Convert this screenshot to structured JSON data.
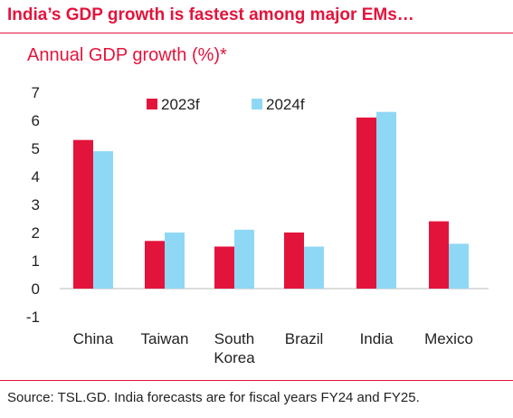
{
  "header": {
    "title": "India’s GDP growth is fastest among major EMs…",
    "subtitle": "Annual GDP growth (%)*"
  },
  "footer": {
    "source": "Source: TSL.GD. India forecasts are for fiscal years FY24 and FY25."
  },
  "colors": {
    "accent": "#e3143c",
    "series_2023f": "#e3143c",
    "series_2024f": "#8fd8f5"
  },
  "chart_data": {
    "type": "bar",
    "title": "Annual GDP growth (%)*",
    "categories": [
      [
        "China"
      ],
      [
        "Taiwan"
      ],
      [
        "South",
        "Korea"
      ],
      [
        "Brazil"
      ],
      [
        "India"
      ],
      [
        "Mexico"
      ]
    ],
    "series": [
      {
        "name": "2023f",
        "values": [
          5.3,
          1.7,
          1.5,
          2.0,
          6.1,
          2.4
        ]
      },
      {
        "name": "2024f",
        "values": [
          4.9,
          2.0,
          2.1,
          1.5,
          6.3,
          1.6
        ]
      }
    ],
    "yticks": [
      7,
      6,
      5,
      4,
      3,
      2,
      1,
      0,
      -1
    ],
    "ylim": [
      -1,
      7
    ],
    "grid": false,
    "legend": "top"
  }
}
